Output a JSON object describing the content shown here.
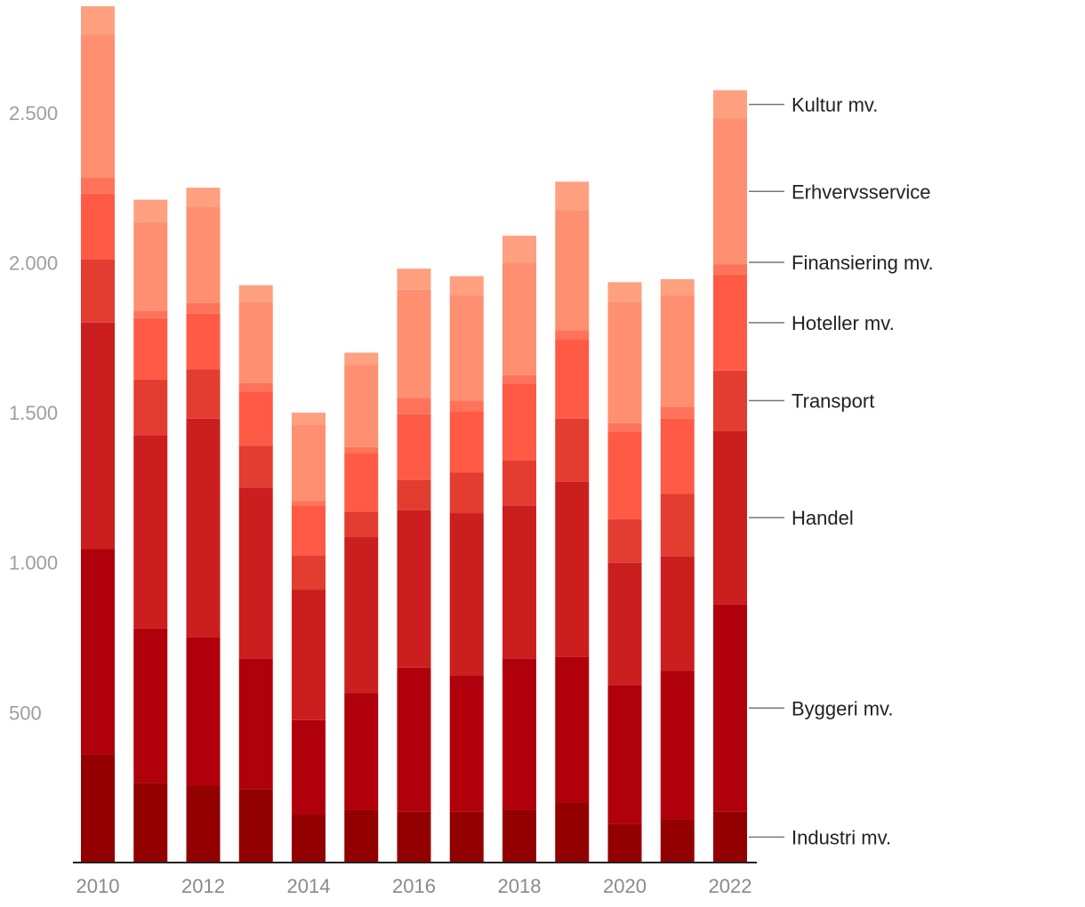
{
  "chart_data": {
    "type": "bar",
    "stacked": true,
    "title": "",
    "xlabel": "",
    "ylabel": "",
    "ylim": [
      0,
      2850
    ],
    "yticks": [
      500,
      1000,
      1500,
      2000,
      2500
    ],
    "ytick_labels": [
      "500",
      "1.000",
      "1.500",
      "2.000",
      "2.500"
    ],
    "categories": [
      "2010",
      "2011",
      "2012",
      "2013",
      "2014",
      "2015",
      "2016",
      "2017",
      "2018",
      "2019",
      "2020",
      "2021",
      "2022"
    ],
    "xtick_labels": [
      "2010",
      "2012",
      "2014",
      "2016",
      "2018",
      "2020",
      "2022"
    ],
    "legend_position": "right, aligned with 2022 bar",
    "series": [
      {
        "name": "Industri mv.",
        "color": "#930000",
        "values": [
          360,
          265,
          255,
          245,
          160,
          175,
          170,
          170,
          175,
          200,
          130,
          145,
          170
        ]
      },
      {
        "name": "Byggeri mv.",
        "color": "#b0000b",
        "values": [
          685,
          515,
          495,
          435,
          315,
          390,
          480,
          455,
          505,
          485,
          460,
          495,
          690
        ]
      },
      {
        "name": "Handel",
        "color": "#cb1e1e",
        "values": [
          755,
          645,
          730,
          570,
          435,
          520,
          525,
          540,
          510,
          585,
          410,
          380,
          580
        ]
      },
      {
        "name": "Transport",
        "color": "#e23d30",
        "values": [
          210,
          185,
          165,
          140,
          115,
          85,
          100,
          135,
          150,
          210,
          145,
          210,
          200
        ]
      },
      {
        "name": "Hoteller mv.",
        "color": "#ff5a45",
        "values": [
          220,
          205,
          185,
          180,
          165,
          195,
          220,
          205,
          255,
          265,
          290,
          250,
          320
        ]
      },
      {
        "name": "Finansiering mv.",
        "color": "#ff735b",
        "values": [
          55,
          25,
          35,
          30,
          15,
          20,
          55,
          35,
          30,
          30,
          30,
          40,
          35
        ]
      },
      {
        "name": "Erhvervsservice",
        "color": "#ff8f71",
        "values": [
          475,
          295,
          320,
          270,
          255,
          275,
          360,
          350,
          375,
          400,
          405,
          370,
          485
        ]
      },
      {
        "name": "Kultur mv.",
        "color": "#ffa080",
        "values": [
          95,
          75,
          65,
          55,
          40,
          40,
          70,
          65,
          90,
          95,
          65,
          55,
          95
        ]
      }
    ]
  }
}
